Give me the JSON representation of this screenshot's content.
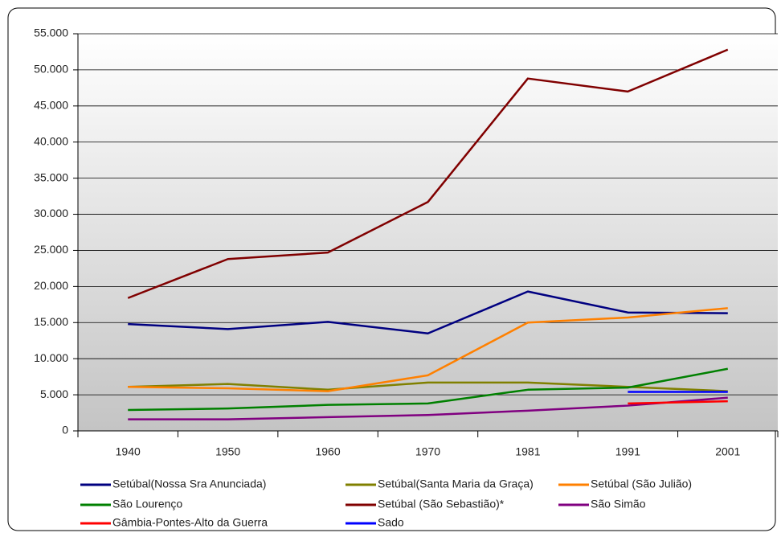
{
  "chart_data": {
    "type": "line",
    "categories": [
      "1940",
      "1950",
      "1960",
      "1970",
      "1981",
      "1991",
      "2001"
    ],
    "ylim": [
      0,
      55000
    ],
    "yticks": [
      0,
      {
        "value": 5000,
        "label": "5.000"
      },
      {
        "value": 10000,
        "label": "10.000"
      },
      {
        "value": 15000,
        "label": "15.000"
      },
      {
        "value": 20000,
        "label": "20.000"
      },
      {
        "value": 25000,
        "label": "25.000"
      },
      {
        "value": 30000,
        "label": "30.000"
      },
      {
        "value": 35000,
        "label": "35.000"
      },
      {
        "value": 40000,
        "label": "40.000"
      },
      {
        "value": 45000,
        "label": "45.000"
      },
      {
        "value": 50000,
        "label": "50.000"
      },
      {
        "value": 55000,
        "label": "55.000"
      }
    ],
    "grid": true,
    "legend": "bottom",
    "series": [
      {
        "name": "Setúbal(Nossa Sra Anunciada)",
        "color": "#000080",
        "values": [
          14800,
          14100,
          15100,
          13500,
          19300,
          16400,
          16300
        ]
      },
      {
        "name": "Setúbal(Santa Maria da Graça)",
        "color": "#808000",
        "values": [
          6100,
          6500,
          5700,
          6700,
          6700,
          6100,
          5500
        ]
      },
      {
        "name": "Setúbal (São Julião)",
        "color": "#ff8000",
        "values": [
          6100,
          5900,
          5500,
          7700,
          15000,
          15700,
          17000
        ]
      },
      {
        "name": "São Lourenço",
        "color": "#008000",
        "values": [
          2900,
          3100,
          3600,
          3800,
          5700,
          6000,
          8600
        ]
      },
      {
        "name": "Setúbal (São Sebastião)*",
        "color": "#800000",
        "values": [
          18400,
          23800,
          24700,
          31700,
          48800,
          47000,
          52800
        ]
      },
      {
        "name": "São Simão",
        "color": "#800080",
        "values": [
          1600,
          1600,
          1900,
          2200,
          2800,
          3500,
          4600
        ]
      },
      {
        "name": "Gâmbia-Pontes-Alto da Guerra",
        "color": "#ff0000",
        "values": [
          null,
          null,
          null,
          null,
          null,
          3800,
          4100
        ]
      },
      {
        "name": "Sado",
        "color": "#0000ff",
        "values": [
          null,
          null,
          null,
          null,
          null,
          5400,
          5400
        ]
      }
    ]
  }
}
